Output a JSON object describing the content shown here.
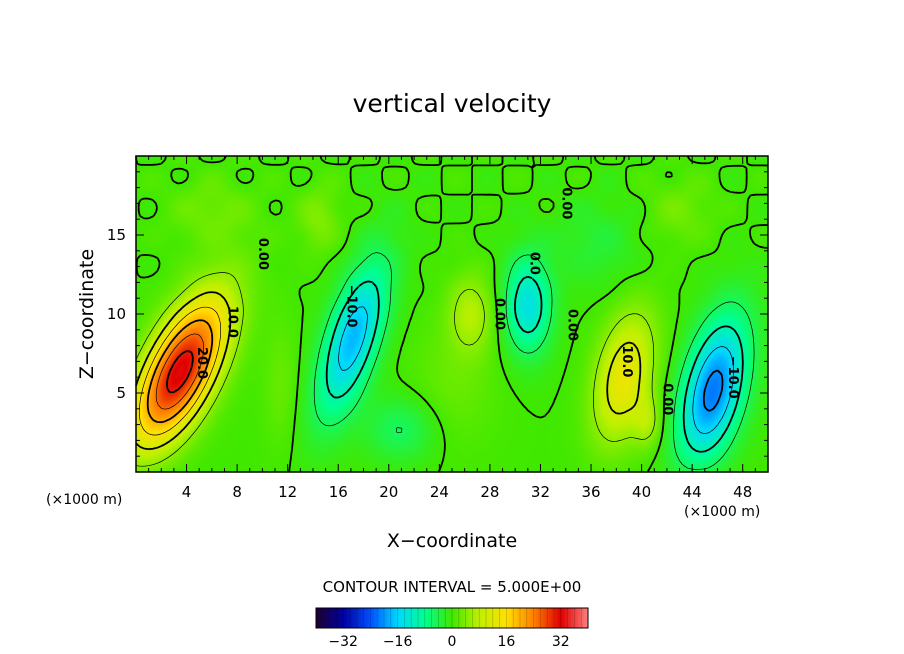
{
  "chart_data": {
    "type": "heatmap",
    "title": "vertical velocity",
    "xlabel": "X−coordinate",
    "ylabel": "Z−coordinate",
    "x_unit": "(×1000 m)",
    "z_unit": "(×1000 m)",
    "xlim": [
      0,
      50
    ],
    "ylim": [
      0,
      20
    ],
    "x_ticks": [
      4,
      8,
      12,
      16,
      20,
      24,
      28,
      32,
      36,
      40,
      44,
      48
    ],
    "y_ticks": [
      5,
      10,
      15
    ],
    "x_tick_labels": [
      "4",
      "8",
      "12",
      "16",
      "20",
      "24",
      "28",
      "32",
      "36",
      "40",
      "44",
      "48"
    ],
    "y_tick_labels": [
      "5",
      "10",
      "15"
    ],
    "contour_interval_text": "CONTOUR INTERVAL = 5.000E+00",
    "contour_interval": 5.0,
    "contour_labels": [
      {
        "text": "20.0",
        "x": 5.2,
        "z": 6.9
      },
      {
        "text": "10.0",
        "x": 7.6,
        "z": 9.5
      },
      {
        "text": "0.00",
        "x": 10.0,
        "z": 13.8
      },
      {
        "text": "−10.0",
        "x": 17.0,
        "z": 10.5
      },
      {
        "text": "0.00",
        "x": 28.7,
        "z": 10.0
      },
      {
        "text": "0.0",
        "x": 31.5,
        "z": 13.2
      },
      {
        "text": "0.00",
        "x": 34.0,
        "z": 17.0
      },
      {
        "text": "0.00",
        "x": 34.5,
        "z": 9.3
      },
      {
        "text": "10.0",
        "x": 38.8,
        "z": 7.0
      },
      {
        "text": "0.00",
        "x": 42.0,
        "z": 4.6
      },
      {
        "text": "−10.0",
        "x": 47.2,
        "z": 6.0
      }
    ],
    "features": [
      {
        "x": 3.2,
        "z": 5.8,
        "amp": 38,
        "sx": 2.0,
        "sz": 3.4,
        "tilt": 0.5
      },
      {
        "x": 17.0,
        "z": 8.0,
        "amp": -19,
        "sx": 1.5,
        "sz": 3.6,
        "tilt": 0.35
      },
      {
        "x": 21.0,
        "z": 2.5,
        "amp": -8,
        "sx": 2.0,
        "sz": 1.5,
        "tilt": 0.0
      },
      {
        "x": 31.0,
        "z": 10.5,
        "amp": -14,
        "sx": 1.3,
        "sz": 2.2,
        "tilt": 0.0
      },
      {
        "x": 26.5,
        "z": 10.0,
        "amp": 7,
        "sx": 1.3,
        "sz": 1.8,
        "tilt": 0.0
      },
      {
        "x": 38.5,
        "z": 5.5,
        "amp": 16,
        "sx": 1.6,
        "sz": 3.0,
        "tilt": 0.2
      },
      {
        "x": 40.5,
        "z": 3.0,
        "amp": 8,
        "sx": 0.8,
        "sz": 1.2,
        "tilt": 0.0
      },
      {
        "x": 45.5,
        "z": 4.5,
        "amp": -27,
        "sx": 1.7,
        "sz": 3.4,
        "tilt": 0.25
      },
      {
        "x": 14.5,
        "z": 16.0,
        "amp": 4,
        "sx": 1.2,
        "sz": 1.5,
        "tilt": 0.0
      },
      {
        "x": 6.0,
        "z": 16.5,
        "amp": 3,
        "sx": 2.5,
        "sz": 1.5,
        "tilt": 0.0
      },
      {
        "x": 36.5,
        "z": 14.5,
        "amp": -3,
        "sx": 2.5,
        "sz": 2.0,
        "tilt": 0.0
      },
      {
        "x": 43.0,
        "z": 16.5,
        "amp": 3,
        "sx": 2.0,
        "sz": 1.5,
        "tilt": 0.0
      },
      {
        "x": 11.5,
        "z": 5.0,
        "amp": 3,
        "sx": 1.0,
        "sz": 3.0,
        "tilt": 0.0
      },
      {
        "x": 25.0,
        "z": 5.0,
        "amp": 3,
        "sx": 2.5,
        "sz": 3.0,
        "tilt": 0.0
      }
    ],
    "colorbar": {
      "min": -40,
      "max": 40,
      "tick_values": [
        -32,
        -16,
        0,
        16,
        32
      ],
      "tick_labels": [
        "−32",
        "−16",
        "0",
        "16",
        "32"
      ],
      "colors": [
        "#200030",
        "#0000a0",
        "#0050ff",
        "#00d8ff",
        "#00ff90",
        "#40e800",
        "#c0f000",
        "#ffe000",
        "#ff8000",
        "#e00000",
        "#ff8080"
      ]
    },
    "grid": false,
    "legend": "colorbar-bottom"
  }
}
